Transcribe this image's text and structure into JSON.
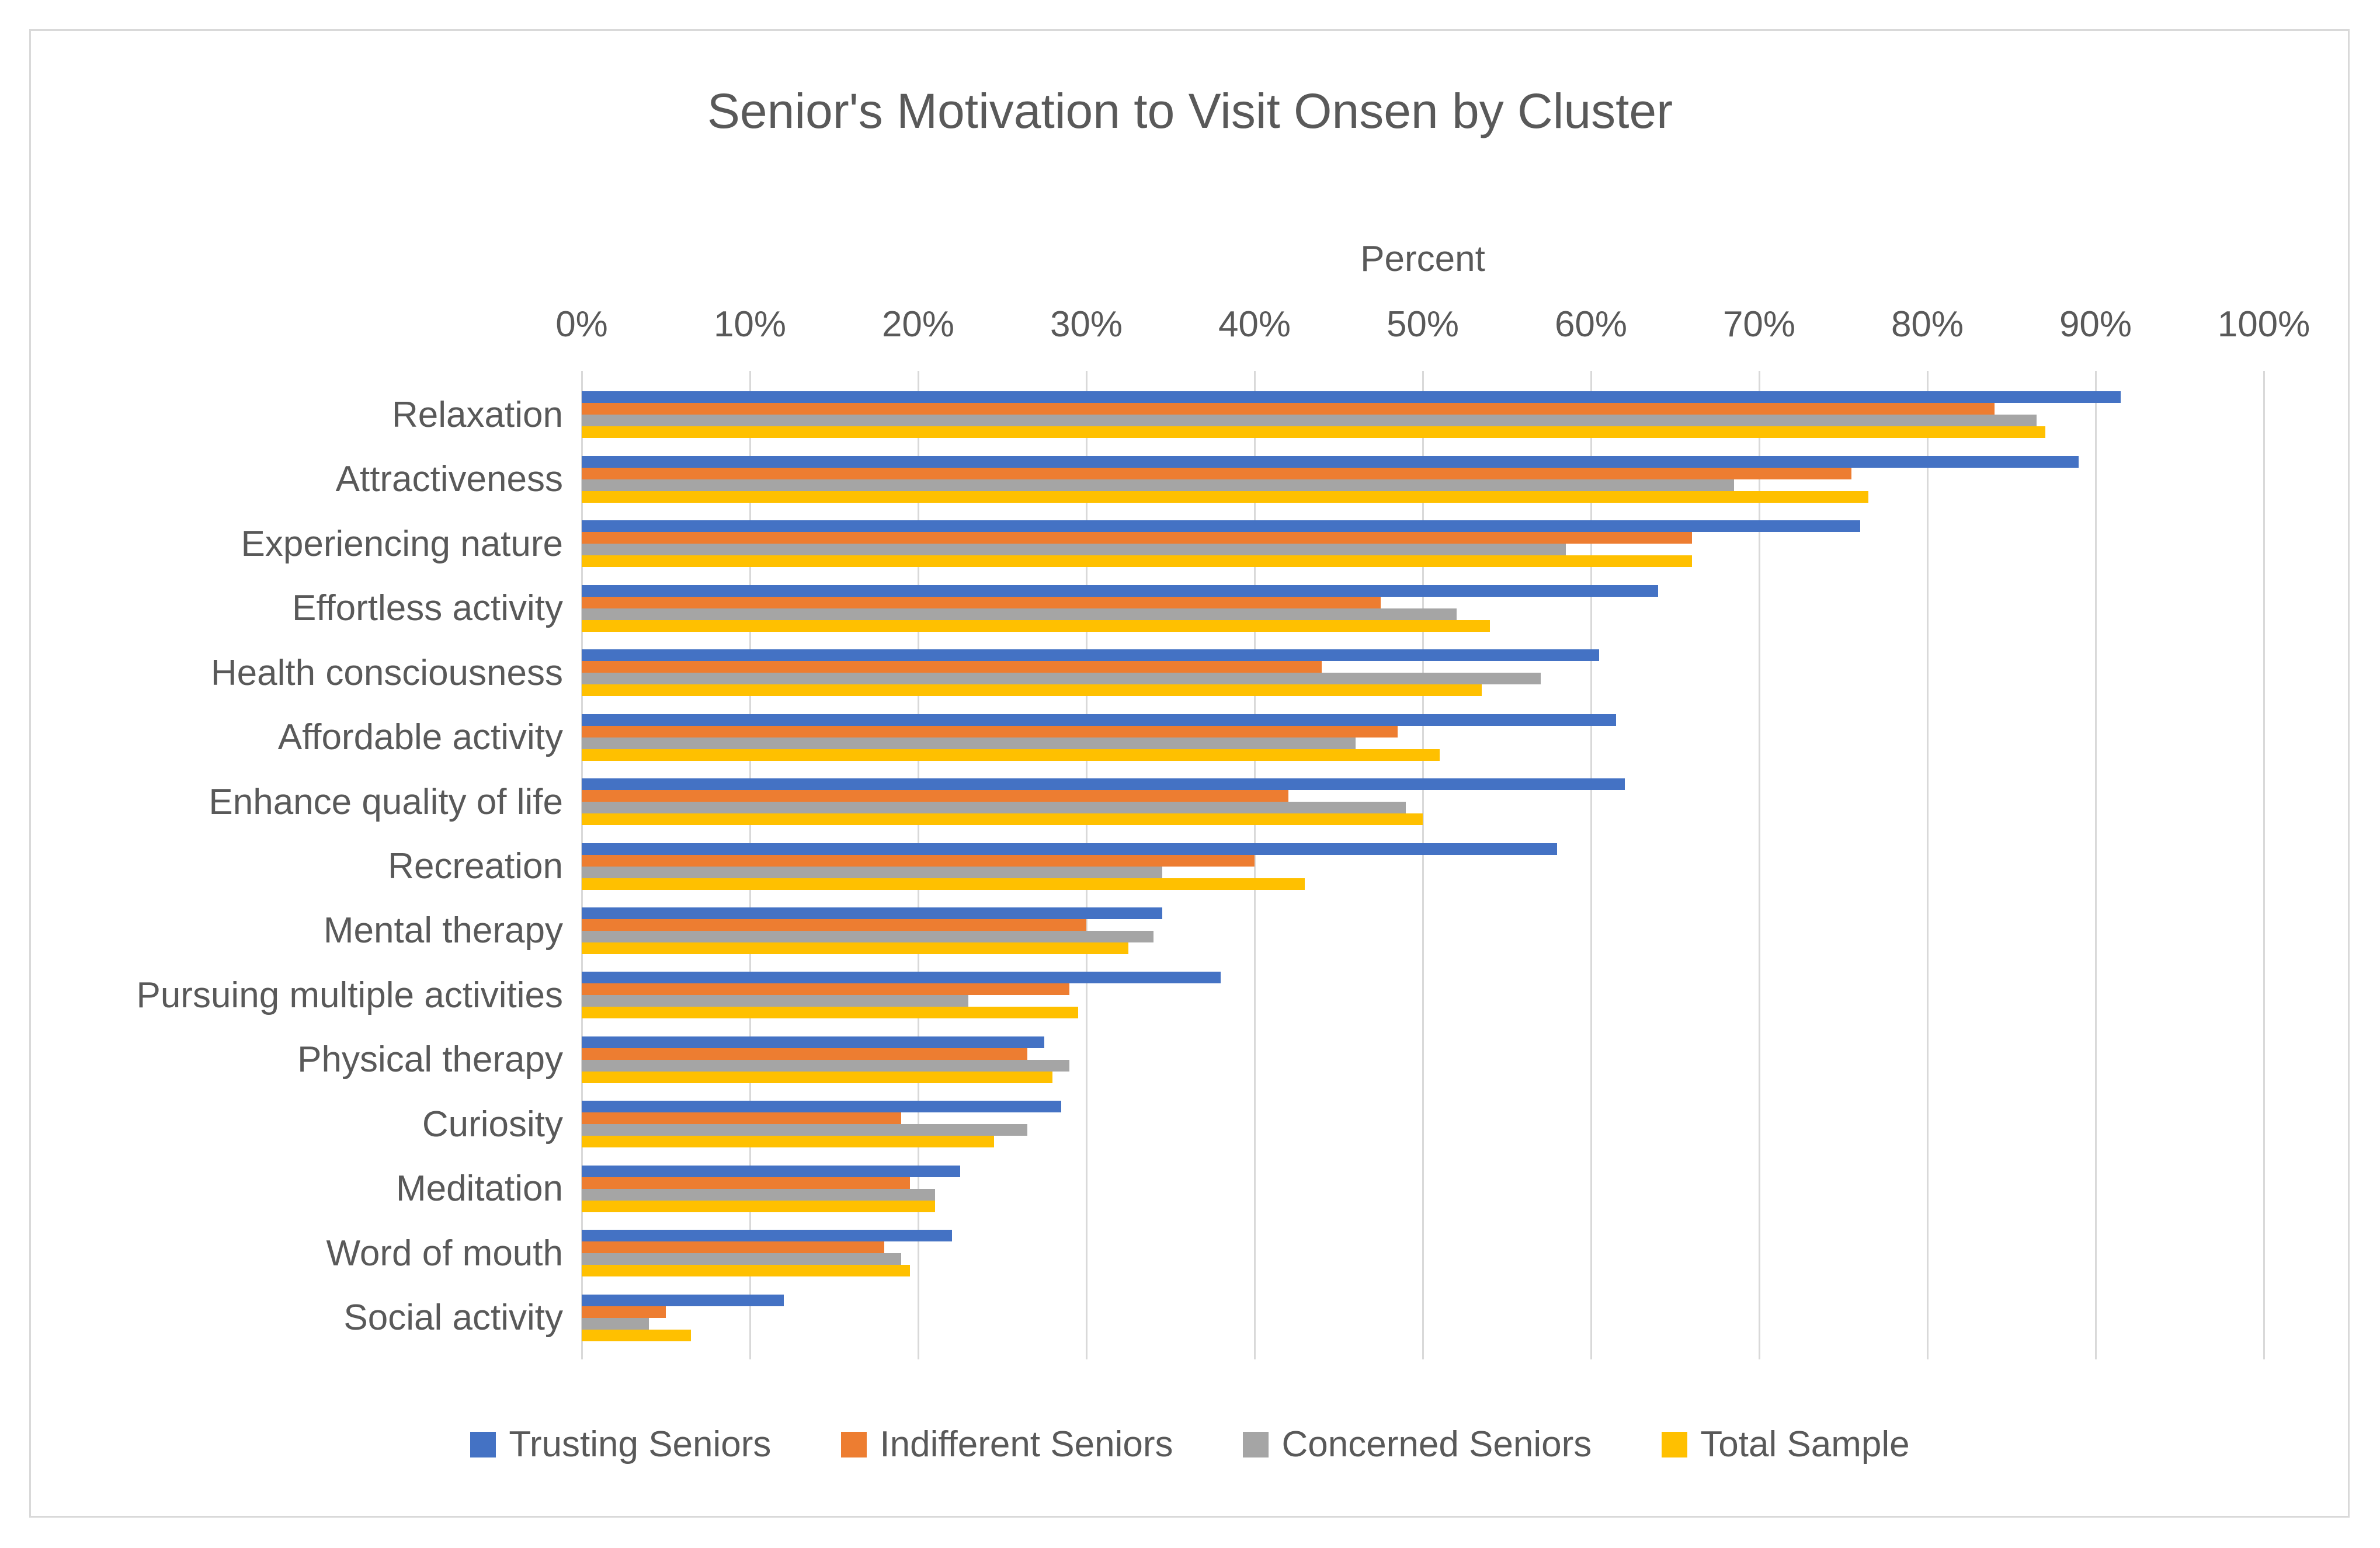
{
  "styles": {
    "background": "#FFFFFF",
    "text_color": "#595959",
    "gridline_color": "#D9D9D9",
    "frame_border_color": "#D9D9D9"
  },
  "chart_data": {
    "type": "bar",
    "orientation": "horizontal",
    "title": "Senior's Motivation to Visit Onsen by Cluster",
    "xlabel": "Percent",
    "xlim": [
      0,
      100
    ],
    "grid": true,
    "legend_position": "bottom",
    "x_ticks": [
      "0%",
      "10%",
      "20%",
      "30%",
      "40%",
      "50%",
      "60%",
      "70%",
      "80%",
      "90%",
      "100%"
    ],
    "categories": [
      "Relaxation",
      "Attractiveness",
      "Experiencing nature",
      "Effortless activity",
      "Health consciousness",
      "Affordable activity",
      "Enhance quality of life",
      "Recreation",
      "Mental therapy",
      "Pursuing multiple activities",
      "Physical therapy",
      "Curiosity",
      "Meditation",
      "Word of mouth",
      "Social activity"
    ],
    "series": [
      {
        "name": "Trusting Seniors",
        "color": "#4472C4",
        "values": [
          91.5,
          89,
          76,
          64,
          60.5,
          61.5,
          62,
          58,
          34.5,
          38,
          27.5,
          28.5,
          22.5,
          22,
          12
        ]
      },
      {
        "name": "Indifferent Seniors",
        "color": "#ED7D31",
        "values": [
          84,
          75.5,
          66,
          47.5,
          44,
          48.5,
          42,
          40,
          30,
          29,
          26.5,
          19,
          19.5,
          18,
          5
        ]
      },
      {
        "name": "Concerned Seniors",
        "color": "#A5A5A5",
        "values": [
          86.5,
          68.5,
          58.5,
          52,
          57,
          46,
          49,
          34.5,
          34,
          23,
          29,
          26.5,
          21,
          19,
          4
        ]
      },
      {
        "name": "Total Sample",
        "color": "#FFC000",
        "values": [
          87,
          76.5,
          66,
          54,
          53.5,
          51,
          50,
          43,
          32.5,
          29.5,
          28,
          24.5,
          21,
          19.5,
          6.5
        ]
      }
    ]
  }
}
